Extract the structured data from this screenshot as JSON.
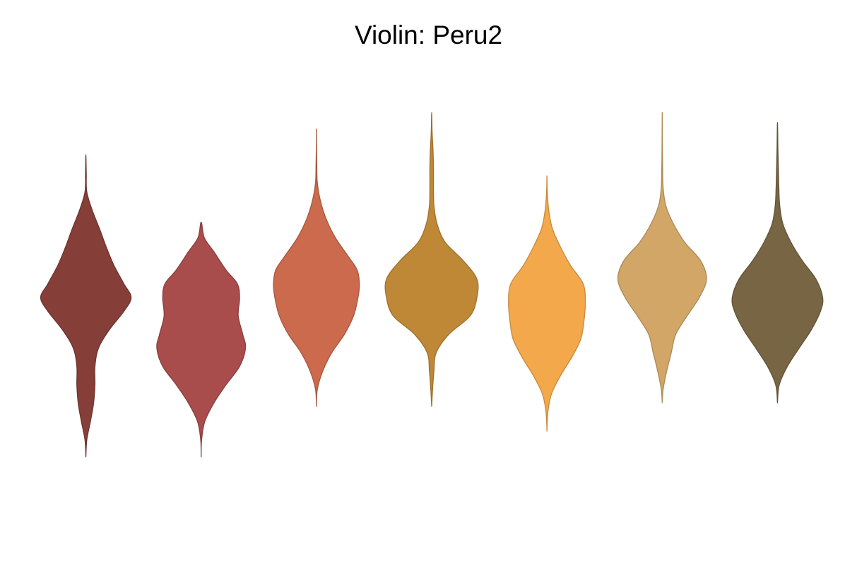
{
  "chart_data": {
    "type": "violin",
    "title": "Violin: Peru2",
    "xlabel": "",
    "ylabel": "",
    "axes_visible": false,
    "grid": false,
    "legend": "none",
    "series": [
      {
        "color": "#853F38",
        "min": -3.47,
        "max": 3.11,
        "density": [
          [
            -3.47,
            0
          ],
          [
            -3.1,
            0.02
          ],
          [
            -2.7,
            0.1
          ],
          [
            -2.3,
            0.17
          ],
          [
            -1.9,
            0.2
          ],
          [
            -1.5,
            0.2
          ],
          [
            -1.1,
            0.28
          ],
          [
            -0.7,
            0.52
          ],
          [
            -0.3,
            0.84
          ],
          [
            0,
            1.0
          ],
          [
            0.3,
            0.84
          ],
          [
            0.7,
            0.62
          ],
          [
            1.1,
            0.45
          ],
          [
            1.5,
            0.3
          ],
          [
            1.9,
            0.14
          ],
          [
            2.3,
            0.02
          ],
          [
            2.7,
            0.008
          ],
          [
            3.11,
            0
          ]
        ]
      },
      {
        "color": "#A84C4C",
        "min": -3.47,
        "max": 1.64,
        "density": [
          [
            -3.47,
            0
          ],
          [
            -3.1,
            0.01
          ],
          [
            -2.7,
            0.08
          ],
          [
            -2.3,
            0.28
          ],
          [
            -1.9,
            0.55
          ],
          [
            -1.5,
            0.85
          ],
          [
            -1.1,
            0.98
          ],
          [
            -0.8,
            0.92
          ],
          [
            -0.4,
            0.82
          ],
          [
            0,
            0.85
          ],
          [
            0.3,
            0.8
          ],
          [
            0.6,
            0.55
          ],
          [
            1.0,
            0.28
          ],
          [
            1.3,
            0.07
          ],
          [
            1.64,
            0
          ]
        ]
      },
      {
        "color": "#CB6A4C",
        "min": -2.37,
        "max": 3.67,
        "density": [
          [
            -2.37,
            0
          ],
          [
            -2.0,
            0.02
          ],
          [
            -1.6,
            0.14
          ],
          [
            -1.2,
            0.34
          ],
          [
            -0.8,
            0.62
          ],
          [
            -0.4,
            0.82
          ],
          [
            0,
            0.92
          ],
          [
            0.3,
            0.95
          ],
          [
            0.6,
            0.9
          ],
          [
            0.9,
            0.7
          ],
          [
            1.3,
            0.42
          ],
          [
            1.7,
            0.22
          ],
          [
            2.1,
            0.09
          ],
          [
            2.5,
            0.02
          ],
          [
            2.9,
            0.008
          ],
          [
            3.3,
            0.002
          ],
          [
            3.67,
            0
          ]
        ]
      },
      {
        "color": "#BF8836",
        "min": -2.37,
        "max": 4.03,
        "density": [
          [
            -2.37,
            0
          ],
          [
            -2.0,
            0.02
          ],
          [
            -1.6,
            0.05
          ],
          [
            -1.2,
            0.1
          ],
          [
            -0.8,
            0.38
          ],
          [
            -0.4,
            0.85
          ],
          [
            0,
            1.0
          ],
          [
            0.4,
            1.0
          ],
          [
            0.8,
            0.7
          ],
          [
            1.2,
            0.3
          ],
          [
            1.6,
            0.12
          ],
          [
            2.0,
            0.05
          ],
          [
            2.4,
            0.04
          ],
          [
            2.8,
            0.04
          ],
          [
            3.2,
            0.03
          ],
          [
            3.6,
            0.01
          ],
          [
            4.03,
            0
          ]
        ]
      },
      {
        "color": "#F3A84B",
        "min": -2.91,
        "max": 2.65,
        "density": [
          [
            -2.91,
            0
          ],
          [
            -2.5,
            0.02
          ],
          [
            -2.1,
            0.1
          ],
          [
            -1.7,
            0.3
          ],
          [
            -1.3,
            0.55
          ],
          [
            -0.9,
            0.75
          ],
          [
            -0.5,
            0.82
          ],
          [
            -0.1,
            0.85
          ],
          [
            0.3,
            0.8
          ],
          [
            0.7,
            0.52
          ],
          [
            1.1,
            0.3
          ],
          [
            1.5,
            0.12
          ],
          [
            1.9,
            0.04
          ],
          [
            2.3,
            0.008
          ],
          [
            2.65,
            0
          ]
        ]
      },
      {
        "color": "#D1A667",
        "min": -2.29,
        "max": 4.03,
        "density": [
          [
            -2.29,
            0
          ],
          [
            -2.0,
            0.02
          ],
          [
            -1.6,
            0.1
          ],
          [
            -1.2,
            0.2
          ],
          [
            -0.8,
            0.3
          ],
          [
            -0.4,
            0.55
          ],
          [
            0,
            0.82
          ],
          [
            0.4,
            0.98
          ],
          [
            0.8,
            0.85
          ],
          [
            1.2,
            0.5
          ],
          [
            1.6,
            0.25
          ],
          [
            2.0,
            0.08
          ],
          [
            2.4,
            0.02
          ],
          [
            2.9,
            0.008
          ],
          [
            3.4,
            0.003
          ],
          [
            4.03,
            0
          ]
        ]
      },
      {
        "color": "#786543",
        "min": -2.29,
        "max": 3.81,
        "density": [
          [
            -2.29,
            0
          ],
          [
            -1.9,
            0.04
          ],
          [
            -1.5,
            0.22
          ],
          [
            -1.1,
            0.48
          ],
          [
            -0.7,
            0.75
          ],
          [
            -0.3,
            0.95
          ],
          [
            0,
            1.0
          ],
          [
            0.4,
            0.85
          ],
          [
            0.8,
            0.55
          ],
          [
            1.2,
            0.3
          ],
          [
            1.6,
            0.12
          ],
          [
            2.0,
            0.05
          ],
          [
            2.4,
            0.03
          ],
          [
            2.8,
            0.02
          ],
          [
            3.2,
            0.01
          ],
          [
            3.81,
            0
          ]
        ]
      }
    ]
  }
}
